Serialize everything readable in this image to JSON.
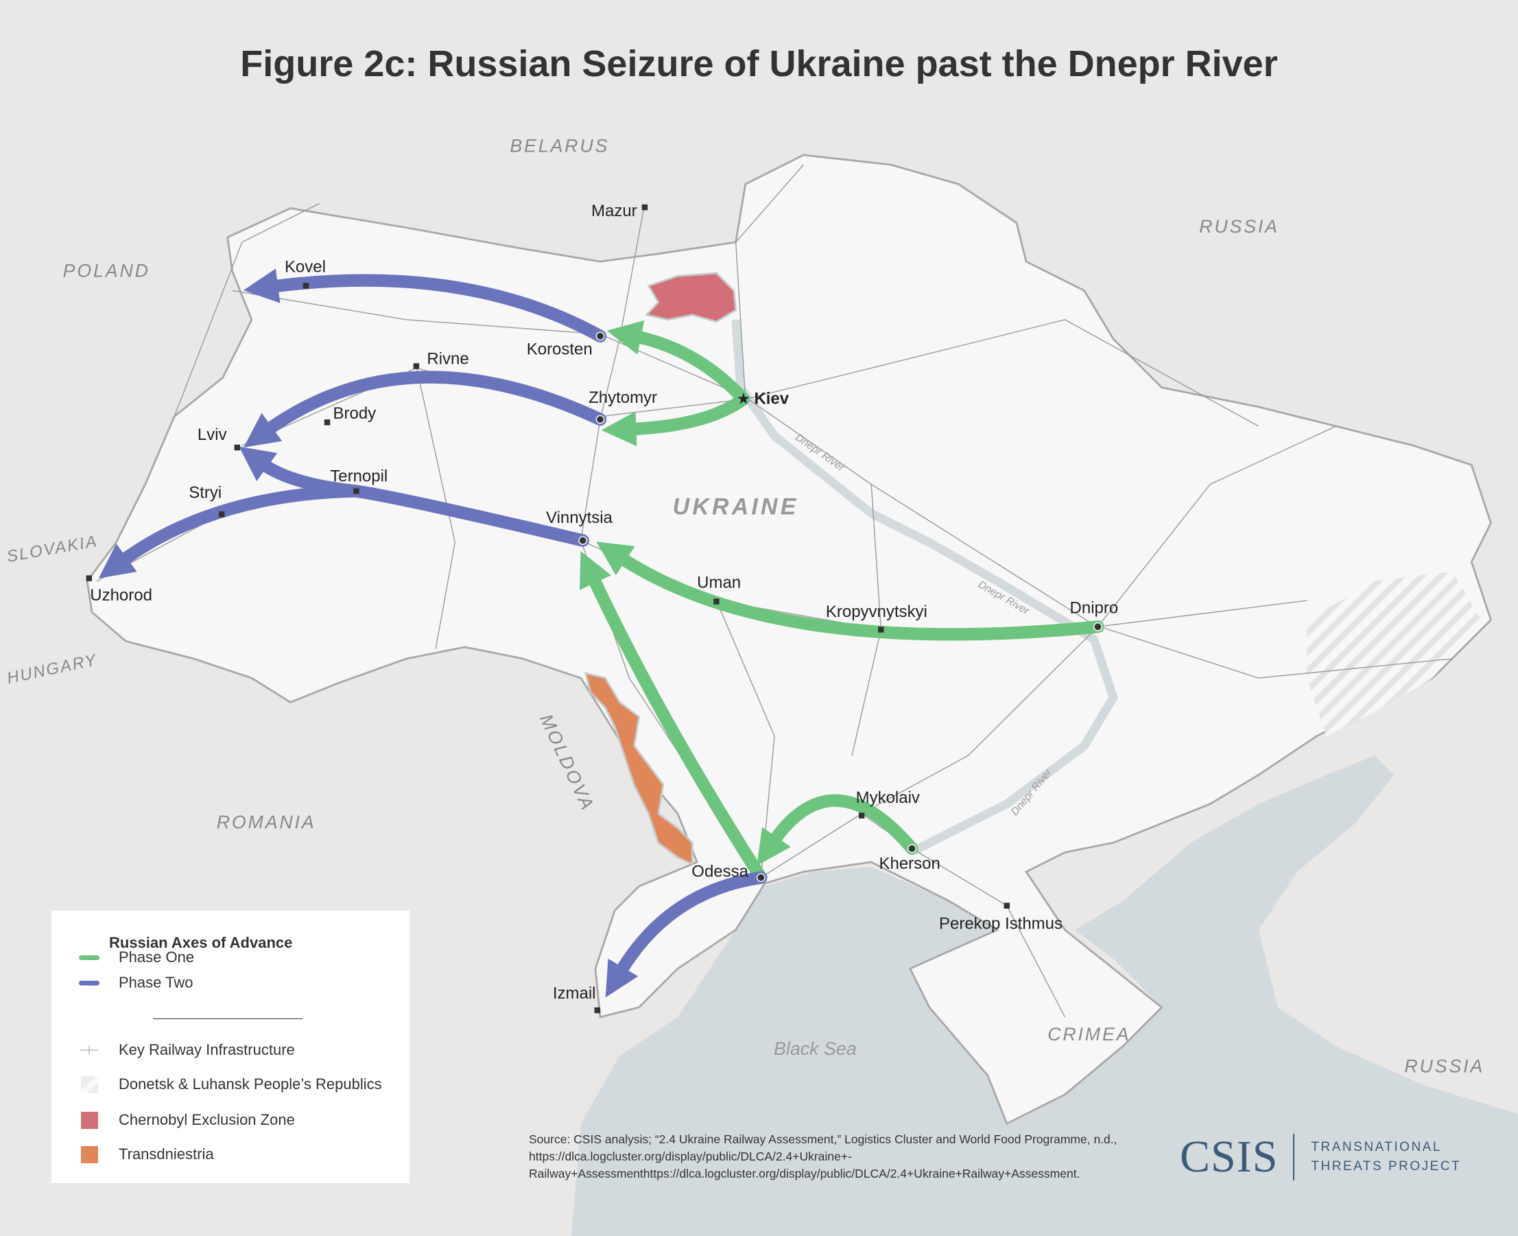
{
  "title": "Figure 2c: Russian Seizure of Ukraine past the Dnepr River",
  "colors": {
    "phase_one": "#6cc47f",
    "phase_two": "#6a74bd",
    "chernobyl": "#d26f78",
    "transdniestria": "#e0875a",
    "land_ukraine": "#f7f7f7",
    "land_other": "#e9e8e6",
    "water": "#d3dade"
  },
  "countries": [
    {
      "id": "belarus",
      "label": "BELARUS"
    },
    {
      "id": "poland",
      "label": "POLAND"
    },
    {
      "id": "russia-north",
      "label": "RUSSIA"
    },
    {
      "id": "slovakia",
      "label": "SLOVAKIA"
    },
    {
      "id": "hungary",
      "label": "HUNGARY"
    },
    {
      "id": "moldova",
      "label": "MOLDOVA"
    },
    {
      "id": "romania",
      "label": "ROMANIA"
    },
    {
      "id": "ukraine",
      "label": "UKRAINE"
    },
    {
      "id": "crimea",
      "label": "CRIMEA"
    },
    {
      "id": "russia-south",
      "label": "RUSSIA"
    }
  ],
  "water_labels": [
    {
      "id": "black-sea",
      "label": "Black Sea"
    },
    {
      "id": "dnepr-1",
      "label": "Dnepr River"
    },
    {
      "id": "dnepr-2",
      "label": "Dnepr River"
    },
    {
      "id": "dnepr-3",
      "label": "Dnepr River"
    }
  ],
  "cities": [
    {
      "id": "mazur",
      "label": "Mazur",
      "capital": false
    },
    {
      "id": "kovel",
      "label": "Kovel",
      "capital": false
    },
    {
      "id": "korosten",
      "label": "Korosten",
      "capital": false
    },
    {
      "id": "rivne",
      "label": "Rivne",
      "capital": false
    },
    {
      "id": "kiev",
      "label": "Kiev",
      "capital": true
    },
    {
      "id": "zhytomyr",
      "label": "Zhytomyr",
      "capital": false
    },
    {
      "id": "brody",
      "label": "Brody",
      "capital": false
    },
    {
      "id": "lviv",
      "label": "Lviv",
      "capital": false
    },
    {
      "id": "ternopil",
      "label": "Ternopil",
      "capital": false
    },
    {
      "id": "stryi",
      "label": "Stryi",
      "capital": false
    },
    {
      "id": "vinnytsia",
      "label": "Vinnytsia",
      "capital": false
    },
    {
      "id": "uzhorod",
      "label": "Uzhorod",
      "capital": false
    },
    {
      "id": "uman",
      "label": "Uman",
      "capital": false
    },
    {
      "id": "kropyvnytskyi",
      "label": "Kropyvnytskyi",
      "capital": false
    },
    {
      "id": "dnipro",
      "label": "Dnipro",
      "capital": false
    },
    {
      "id": "mykolaiv",
      "label": "Mykolaiv",
      "capital": false
    },
    {
      "id": "kherson",
      "label": "Kherson",
      "capital": false
    },
    {
      "id": "odessa",
      "label": "Odessa",
      "capital": false
    },
    {
      "id": "perekop",
      "label": "Perekop Isthmus",
      "capital": false
    },
    {
      "id": "izmail",
      "label": "Izmail",
      "capital": false
    }
  ],
  "axes_of_advance": [
    {
      "phase": "one",
      "from": "Kiev",
      "to": "Korosten"
    },
    {
      "phase": "one",
      "from": "Kiev",
      "to": "Zhytomyr"
    },
    {
      "phase": "one",
      "from": "Dnipro",
      "to": "Vinnytsia"
    },
    {
      "phase": "one",
      "from": "Odessa",
      "to": "Vinnytsia"
    },
    {
      "phase": "one",
      "from": "Kherson",
      "to": "Odessa"
    },
    {
      "phase": "two",
      "from": "Korosten",
      "to": "Kovel"
    },
    {
      "phase": "two",
      "from": "Zhytomyr",
      "to": "Lviv"
    },
    {
      "phase": "two",
      "from": "Vinnytsia",
      "to": "Lviv"
    },
    {
      "phase": "two",
      "from": "Ternopil",
      "to": "Uzhorod"
    },
    {
      "phase": "two",
      "from": "Odessa",
      "to": "Izmail"
    }
  ],
  "legend": {
    "heading": "Russian Axes of Advance",
    "phase_one": "Phase One",
    "phase_two": "Phase Two",
    "railway": "Key Railway Infrastructure",
    "dlpr": "Donetsk & Luhansk People’s Republics",
    "chernobyl": "Chernobyl Exclusion Zone",
    "transdniestria": "Transdniestria"
  },
  "source": "Source: CSIS analysis; “2.4 Ukraine Railway Assessment,” Logistics Cluster and World Food Programme, n.d., https://dlca.logcluster.org/display/public/DLCA/2.4+Ukraine+-Railway+Assessmenthttps://dlca.logcluster.org/display/public/DLCA/2.4+Ukraine+Railway+Assessment.",
  "logo": {
    "org": "CSIS",
    "line1": "TRANSNATIONAL",
    "line2": "THREATS PROJECT"
  }
}
